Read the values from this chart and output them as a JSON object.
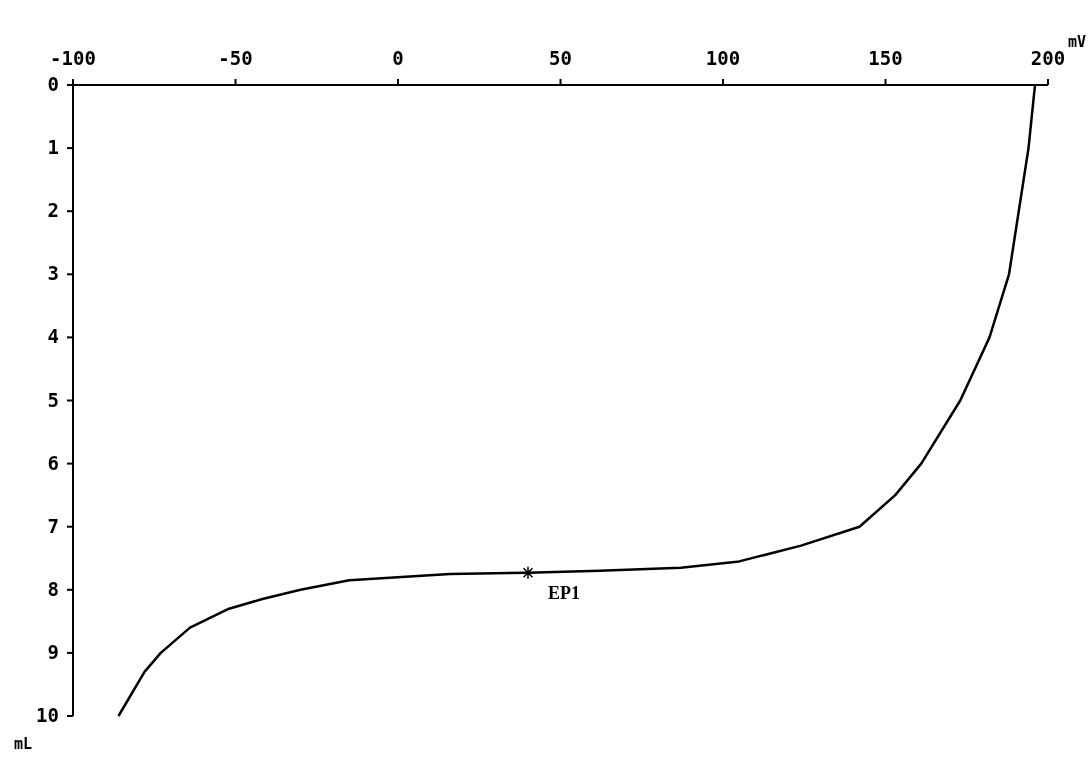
{
  "chart_data": {
    "type": "line",
    "xlabel": "mV",
    "ylabel": "mL",
    "x": [
      -86,
      -78,
      -73,
      -64,
      -52,
      -42,
      -30,
      -15,
      16,
      40,
      62,
      87,
      105,
      124,
      142,
      153,
      161,
      173,
      182,
      188,
      191,
      194,
      196
    ],
    "series": [
      {
        "color": "#000000",
        "values": [
          10,
          9.3,
          9.0,
          8.6,
          8.3,
          8.15,
          8.0,
          7.85,
          7.75,
          7.73,
          7.7,
          7.65,
          7.55,
          7.3,
          7.0,
          6.5,
          6.0,
          5.0,
          4.0,
          3.0,
          2.0,
          1.0,
          0
        ]
      }
    ],
    "xlim": [
      -100,
      200
    ],
    "xticks": [
      -100,
      -50,
      0,
      50,
      100,
      150,
      200
    ],
    "ylim": [
      10,
      0
    ],
    "yticks": [
      0,
      1,
      2,
      3,
      4,
      5,
      6,
      7,
      8,
      9,
      10
    ],
    "grid": false,
    "marker": "none",
    "line_style": "solid",
    "annotations": [
      {
        "text": "EP1",
        "x": 40,
        "y": 7.73
      }
    ]
  }
}
